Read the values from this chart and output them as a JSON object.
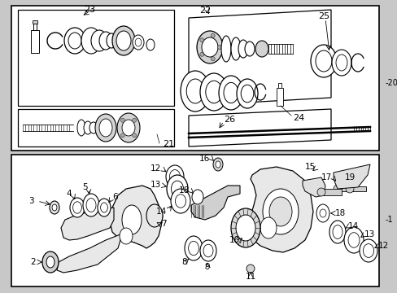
{
  "bg_color": "#c8c8c8",
  "box_color": "#ffffff",
  "line_color": "#000000",
  "text_color": "#000000",
  "fig_width": 4.89,
  "fig_height": 3.6,
  "dpi": 100
}
